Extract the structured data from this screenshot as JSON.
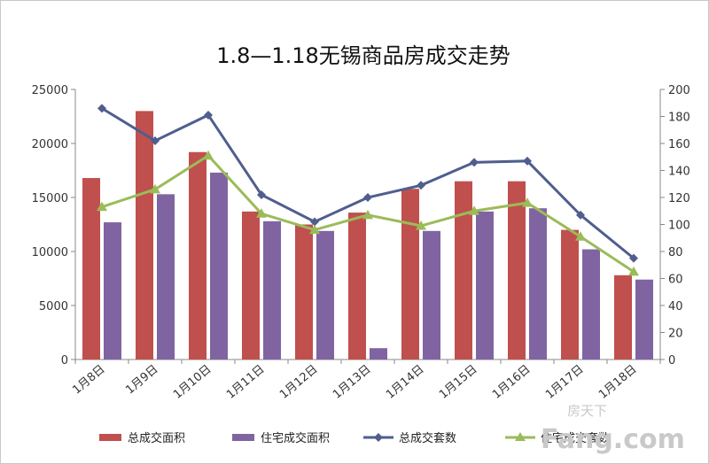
{
  "chart_data": {
    "type": "bar",
    "title": "1.8—1.18无锡商品房成交走势",
    "categories": [
      "1月8日",
      "1月9日",
      "1月10日",
      "1月11日",
      "1月12日",
      "1月13日",
      "1月14日",
      "1月15日",
      "1月16日",
      "1月17日",
      "1月18日"
    ],
    "series": [
      {
        "name": "总成交面积",
        "type": "bar",
        "axis": "left",
        "color": "#c0504d",
        "values": [
          16800,
          23000,
          19200,
          13700,
          12500,
          13600,
          15800,
          16500,
          16500,
          12000,
          7800
        ]
      },
      {
        "name": "住宅成交面积",
        "type": "bar",
        "axis": "left",
        "color": "#8064a2",
        "values": [
          12700,
          15300,
          17300,
          12800,
          11900,
          1050,
          11900,
          13700,
          14000,
          10200,
          7400
        ]
      },
      {
        "name": "总成交套数",
        "type": "line",
        "axis": "right",
        "color": "#4f5e8e",
        "marker": "diamond",
        "values": [
          186,
          162,
          181,
          122,
          102,
          120,
          129,
          146,
          147,
          107,
          75
        ]
      },
      {
        "name": "住宅成交套数",
        "type": "line",
        "axis": "right",
        "color": "#9bbb59",
        "marker": "triangle",
        "values": [
          113,
          126,
          151,
          108,
          96,
          107,
          99,
          110,
          116,
          91,
          65
        ]
      }
    ],
    "y_left": {
      "min": 0,
      "max": 25000,
      "ticks": [
        0,
        5000,
        10000,
        15000,
        20000,
        25000
      ]
    },
    "y_right": {
      "min": 0,
      "max": 200,
      "ticks": [
        0,
        20,
        40,
        60,
        80,
        100,
        120,
        140,
        160,
        180,
        200
      ]
    },
    "grid": false,
    "legend_position": "bottom"
  },
  "watermark": {
    "top": "房天下",
    "bottom": "Fang.com"
  }
}
